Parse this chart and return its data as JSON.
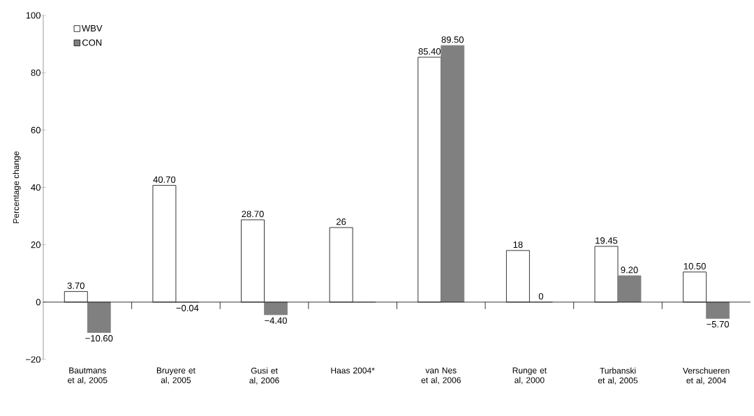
{
  "chart_data": {
    "type": "bar",
    "ylabel": "Percentage change",
    "categories": [
      "Bautmans et al, 2005",
      "Bruyere et al, 2005",
      "Gusi et al, 2006",
      "Haas 2004*",
      "van Nes et al, 2006",
      "Runge et al, 2000",
      "Turbanski et al, 2005",
      "Verschueren et al, 2004"
    ],
    "series": [
      {
        "name": "WBV",
        "color": "#ffffff",
        "values": [
          3.7,
          40.7,
          28.7,
          26,
          85.4,
          18,
          19.45,
          10.5
        ],
        "value_labels": [
          "3.70",
          "40.70",
          "28.70",
          "26",
          "85.40",
          "18",
          "19.45",
          "10.50"
        ]
      },
      {
        "name": "CON",
        "color": "#808080",
        "values": [
          -10.6,
          -0.04,
          -4.4,
          0,
          89.5,
          0,
          9.2,
          -5.7
        ],
        "value_labels": [
          "−10.60",
          "−0.04",
          "−4.40",
          null,
          "89.50",
          "0",
          "9.20",
          "−5.70"
        ]
      }
    ],
    "ylim": [
      -20,
      100
    ],
    "yticks": [
      {
        "value": -20,
        "label": "−20"
      },
      0,
      20,
      40,
      60,
      80,
      100
    ],
    "legend": "top left"
  }
}
